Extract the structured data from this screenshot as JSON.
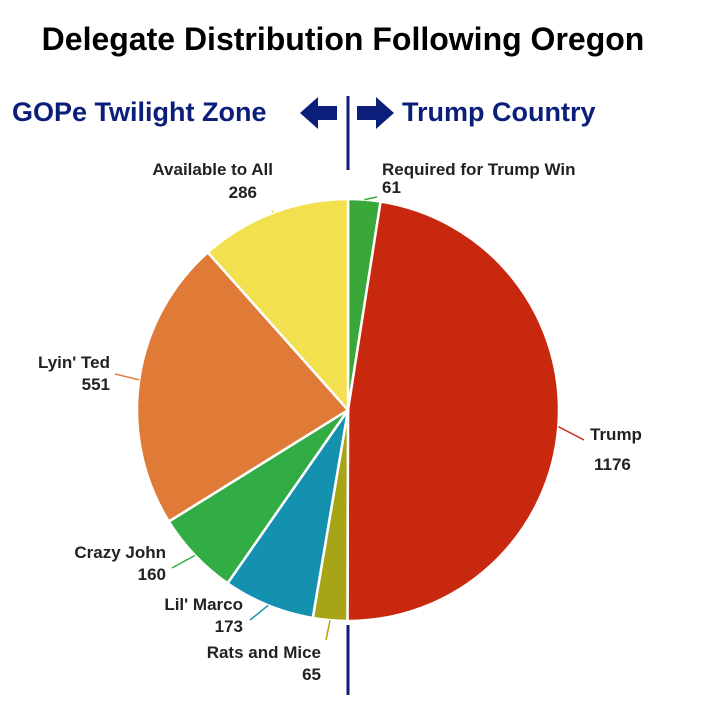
{
  "chart_data": {
    "type": "pie",
    "title": "Delegate Distribution Following Oregon",
    "left_zone_label": "GOPe Twilight Zone",
    "right_zone_label": "Trump Country",
    "slices": [
      {
        "label": "Required for Trump Win",
        "value": 61,
        "value_label": "61",
        "color": "#3aa73a"
      },
      {
        "label": "Trump",
        "value": 1176,
        "value_label": "1176",
        "color": "#c8280e"
      },
      {
        "label": "Rats and Mice",
        "value": 65,
        "value_label": "65",
        "color": "#a7a418"
      },
      {
        "label": "Lil' Marco",
        "value": 173,
        "value_label": "173",
        "color": "#1591b0"
      },
      {
        "label": "Crazy John",
        "value": 160,
        "value_label": "160",
        "color": "#32ad45"
      },
      {
        "label": "Lyin' Ted",
        "value": 551,
        "value_label": "551",
        "color": "#e07a37"
      },
      {
        "label": "Available to All",
        "value": 286,
        "value_label": "286",
        "color": "#f2e04e"
      }
    ]
  }
}
